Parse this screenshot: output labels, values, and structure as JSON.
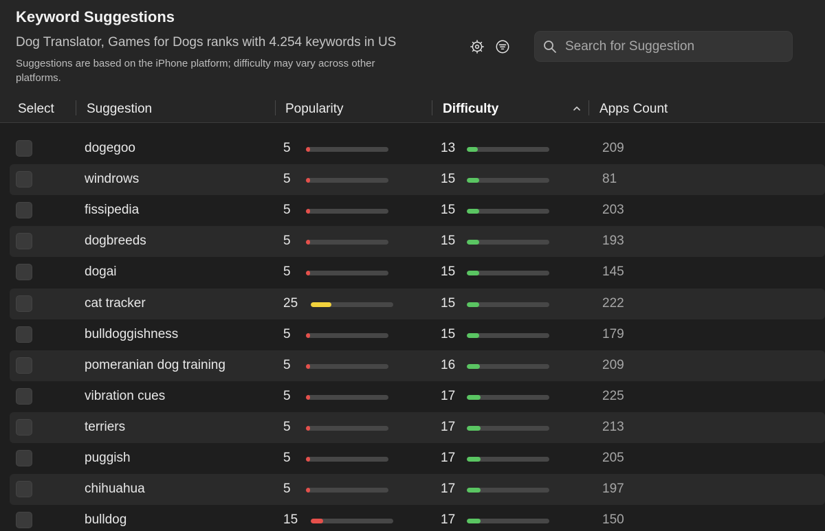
{
  "header": {
    "title": "Keyword Suggestions",
    "subtitle": "Dog Translator, Games for Dogs ranks with 4.254 keywords in US",
    "note": "Suggestions are based on the iPhone platform; difficulty may vary across other platforms."
  },
  "icons": {
    "settings": "gear-icon",
    "filter": "filter-icon",
    "search": "search-icon",
    "sort": "chevron-up-icon"
  },
  "search": {
    "placeholder": "Search for Suggestion",
    "value": ""
  },
  "columns": {
    "select": "Select",
    "suggestion": "Suggestion",
    "popularity": "Popularity",
    "difficulty": "Difficulty",
    "apps": "Apps Count"
  },
  "sort": {
    "column": "difficulty",
    "direction": "ascending"
  },
  "colors": {
    "background": "#1e1e1e",
    "popularity_low": "#e5504b",
    "popularity_mid": "#f2d23c",
    "difficulty_low": "#5ac562",
    "track": "#474747"
  },
  "rows": [
    {
      "keyword": "dogegoo",
      "popularity": 5,
      "difficulty": 13,
      "apps": 209
    },
    {
      "keyword": "windrows",
      "popularity": 5,
      "difficulty": 15,
      "apps": 81
    },
    {
      "keyword": "fissipedia",
      "popularity": 5,
      "difficulty": 15,
      "apps": 203
    },
    {
      "keyword": "dogbreeds",
      "popularity": 5,
      "difficulty": 15,
      "apps": 193
    },
    {
      "keyword": "dogai",
      "popularity": 5,
      "difficulty": 15,
      "apps": 145
    },
    {
      "keyword": "cat tracker",
      "popularity": 25,
      "difficulty": 15,
      "apps": 222
    },
    {
      "keyword": "bulldoggishness",
      "popularity": 5,
      "difficulty": 15,
      "apps": 179
    },
    {
      "keyword": "pomeranian dog training",
      "popularity": 5,
      "difficulty": 16,
      "apps": 209
    },
    {
      "keyword": "vibration cues",
      "popularity": 5,
      "difficulty": 17,
      "apps": 225
    },
    {
      "keyword": "terriers",
      "popularity": 5,
      "difficulty": 17,
      "apps": 213
    },
    {
      "keyword": "puggish",
      "popularity": 5,
      "difficulty": 17,
      "apps": 205
    },
    {
      "keyword": "chihuahua",
      "popularity": 5,
      "difficulty": 17,
      "apps": 197
    },
    {
      "keyword": "bulldog",
      "popularity": 15,
      "difficulty": 17,
      "apps": 150
    }
  ]
}
